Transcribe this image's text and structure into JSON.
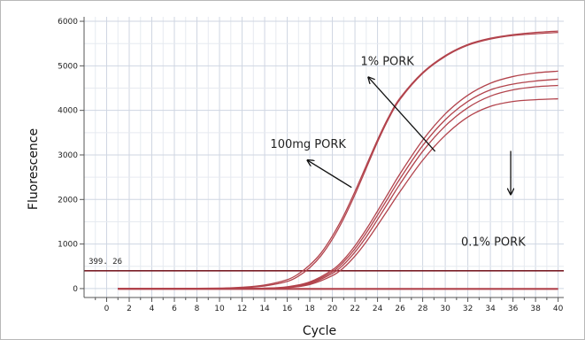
{
  "chart_data": {
    "type": "line",
    "xlabel": "Cycle",
    "ylabel": "Fluorescence",
    "xlim": [
      -2,
      40.5
    ],
    "ylim": [
      -200,
      6100
    ],
    "xticks": [
      0,
      2,
      4,
      6,
      8,
      10,
      12,
      14,
      16,
      18,
      20,
      22,
      24,
      26,
      28,
      30,
      32,
      34,
      36,
      38,
      40
    ],
    "yticks": [
      0,
      1000,
      2000,
      3000,
      4000,
      5000,
      6000
    ],
    "grid": true,
    "threshold": {
      "value": 399.26,
      "label": "399. 26"
    },
    "series": [
      {
        "x": [
          1,
          6,
          10,
          12,
          14,
          16,
          17,
          18,
          19,
          20,
          21,
          22,
          23,
          24,
          25,
          26,
          28,
          30,
          32,
          34,
          36,
          38,
          40
        ],
        "values": [
          0,
          0,
          10,
          30,
          80,
          200,
          330,
          530,
          800,
          1180,
          1640,
          2180,
          2760,
          3340,
          3860,
          4280,
          4850,
          5230,
          5480,
          5620,
          5700,
          5750,
          5780
        ]
      },
      {
        "x": [
          1,
          6,
          10,
          12,
          14,
          16,
          17,
          18,
          19,
          20,
          21,
          22,
          23,
          24,
          25,
          26,
          28,
          30,
          32,
          34,
          36,
          38,
          40
        ],
        "values": [
          0,
          0,
          5,
          20,
          60,
          160,
          280,
          470,
          740,
          1110,
          1570,
          2110,
          2700,
          3290,
          3820,
          4250,
          4830,
          5210,
          5460,
          5600,
          5680,
          5720,
          5750
        ]
      },
      {
        "x": [
          1,
          10,
          14,
          16,
          18,
          20,
          21,
          22,
          23,
          24,
          25,
          26,
          28,
          30,
          32,
          34,
          36,
          38,
          40
        ],
        "values": [
          0,
          0,
          10,
          40,
          150,
          420,
          650,
          960,
          1330,
          1740,
          2160,
          2580,
          3330,
          3920,
          4340,
          4610,
          4760,
          4840,
          4880
        ]
      },
      {
        "x": [
          1,
          10,
          14,
          16,
          18,
          20,
          21,
          22,
          23,
          24,
          25,
          26,
          28,
          30,
          32,
          34,
          36,
          38,
          40
        ],
        "values": [
          0,
          0,
          8,
          30,
          130,
          380,
          600,
          890,
          1250,
          1650,
          2060,
          2470,
          3210,
          3790,
          4200,
          4460,
          4590,
          4660,
          4700
        ]
      },
      {
        "x": [
          1,
          10,
          14,
          16,
          18,
          20,
          21,
          22,
          23,
          24,
          25,
          26,
          28,
          30,
          32,
          34,
          36,
          38,
          40
        ],
        "values": [
          0,
          0,
          6,
          25,
          110,
          340,
          540,
          820,
          1160,
          1550,
          1950,
          2350,
          3080,
          3650,
          4060,
          4320,
          4460,
          4530,
          4560
        ]
      },
      {
        "x": [
          1,
          10,
          14,
          16,
          18,
          20,
          21,
          22,
          23,
          24,
          25,
          26,
          28,
          30,
          32,
          34,
          36,
          38,
          40
        ],
        "values": [
          0,
          0,
          4,
          18,
          90,
          290,
          470,
          730,
          1050,
          1420,
          1800,
          2180,
          2880,
          3440,
          3850,
          4090,
          4200,
          4240,
          4260
        ]
      },
      {
        "x": [
          1,
          5,
          10,
          20,
          30,
          40
        ],
        "values": [
          0,
          0,
          0,
          0,
          0,
          0
        ]
      },
      {
        "x": [
          1,
          5,
          10,
          20,
          30,
          40
        ],
        "values": [
          -15,
          -15,
          -15,
          -15,
          -15,
          -15
        ]
      }
    ],
    "annotations": [
      {
        "text": "1% PORK",
        "at": [
          22.5,
          5020
        ]
      },
      {
        "text": "100mg PORK",
        "at": [
          14.5,
          3160
        ]
      },
      {
        "text": "0.1% PORK",
        "at": [
          31.4,
          960
        ]
      }
    ],
    "arrows": [
      {
        "from": [
          29.1,
          3080
        ],
        "to": [
          23.2,
          4740
        ]
      },
      {
        "from": [
          21.7,
          2270
        ],
        "to": [
          17.8,
          2880
        ]
      },
      {
        "from": [
          35.8,
          3090
        ],
        "to": [
          35.8,
          2120
        ]
      }
    ],
    "line_color": "#b2434c",
    "threshold_color": "#7a1e27"
  }
}
